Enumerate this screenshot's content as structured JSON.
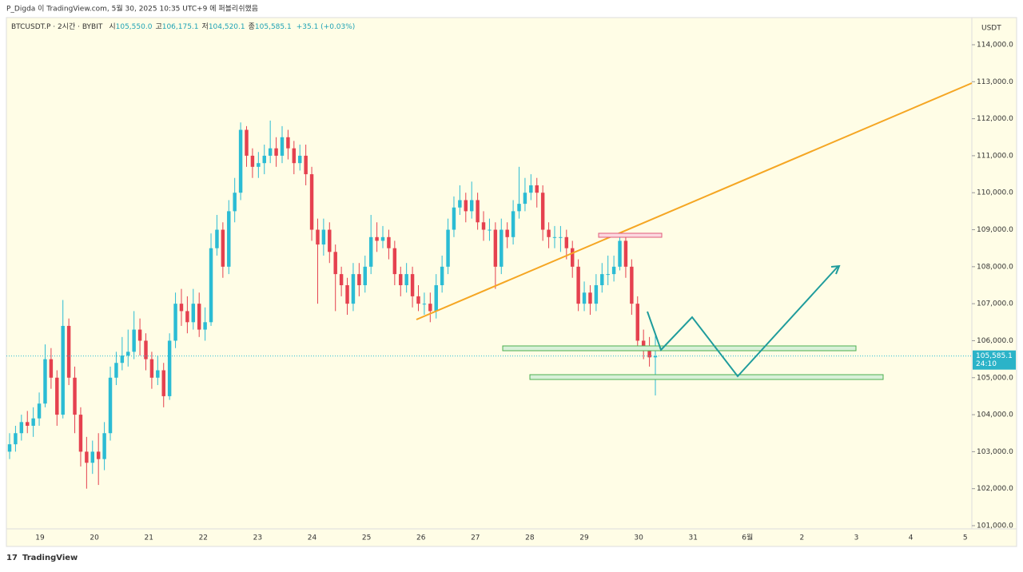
{
  "chart_data": {
    "type": "candlestick",
    "header": "P_Digda 이 TradingView.com, 5월 30, 2025 10:35 UTC+9 에 퍼블리쉬했음",
    "symbol": "BTCUSDT.P · 2시간 · BYBIT",
    "ohlc_legend": [
      {
        "label": "시",
        "value": "105,550.0"
      },
      {
        "label": "고",
        "value": "106,175.1"
      },
      {
        "label": "저",
        "value": "104,520.1"
      },
      {
        "label": "종",
        "value": "105,585.1"
      }
    ],
    "change": "+35.1 (+0.03%)",
    "currency": "USDT",
    "last_price": 105585.1,
    "last_price_label": "105,585.1",
    "countdown": "24:10",
    "brand": "TradingView",
    "up_color": "#2bbcd4",
    "down_color": "#e5414f",
    "xticks": [
      "19",
      "20",
      "21",
      "22",
      "23",
      "24",
      "25",
      "26",
      "27",
      "28",
      "29",
      "30",
      "31",
      "6월",
      "2",
      "3",
      "4",
      "5"
    ],
    "ylim": [
      101000,
      114000
    ],
    "yticks": [
      {
        "value": 101000,
        "label": "101,000.0"
      },
      {
        "value": 102000,
        "label": "102,000.0"
      },
      {
        "value": 103000,
        "label": "103,000.0"
      },
      {
        "value": 104000,
        "label": "104,000.0"
      },
      {
        "value": 105000,
        "label": "105,000.0"
      },
      {
        "value": 106000,
        "label": "106,000.0"
      },
      {
        "value": 107000,
        "label": "107,000.0"
      },
      {
        "value": 108000,
        "label": "108,000.0"
      },
      {
        "value": 109000,
        "label": "109,000.0"
      },
      {
        "value": 110000,
        "label": "110,000.0"
      },
      {
        "value": 111000,
        "label": "111,000.0"
      },
      {
        "value": 112000,
        "label": "112,000.0"
      },
      {
        "value": 113000,
        "label": "113,000.0"
      },
      {
        "value": 114000,
        "label": "114,000.0"
      }
    ],
    "open": [
      103000,
      103200,
      103500,
      103800,
      103700,
      103900,
      104300,
      105500,
      105000,
      104000,
      106400,
      105000,
      104000,
      103000,
      102700,
      103000,
      102800,
      103500,
      105000,
      105400,
      105600,
      105700,
      106300,
      106000,
      105500,
      105000,
      105200,
      104500,
      106000,
      107000,
      106800,
      106500,
      107000,
      106300,
      106500,
      108500,
      109000,
      108000,
      109500,
      110000,
      111700,
      111000,
      110700,
      110800,
      111000,
      111200,
      111000,
      111500,
      111200,
      110800,
      111000,
      110500,
      109000,
      108600,
      109000,
      108400,
      107800,
      107500,
      107000,
      107800,
      107500,
      108000,
      108800,
      108700,
      108800,
      108500,
      107800,
      107500,
      107800,
      107200,
      107000,
      107000,
      106800,
      107500,
      108000,
      109000,
      109600,
      109800,
      109500,
      109800,
      109200,
      109000,
      109000,
      108000,
      109000,
      108800,
      109500,
      109700,
      110000,
      110200,
      110000,
      109000,
      108800,
      108800,
      108800,
      108500,
      108000,
      107000,
      107300,
      107000,
      107500,
      107800,
      107800,
      108000,
      108700,
      108000,
      107000,
      106000,
      105800,
      105550
    ],
    "high": [
      103500,
      103700,
      104000,
      104100,
      104200,
      104600,
      105900,
      105800,
      105200,
      107100,
      106600,
      105300,
      104200,
      103400,
      103300,
      103500,
      103800,
      105300,
      105700,
      106100,
      106300,
      106800,
      106600,
      106200,
      105700,
      105600,
      105400,
      106200,
      107300,
      107400,
      107200,
      107400,
      107300,
      106900,
      108900,
      109400,
      109200,
      109800,
      110400,
      111900,
      111800,
      111200,
      111100,
      111300,
      111950,
      111500,
      111800,
      111700,
      111400,
      111300,
      111300,
      110700,
      109300,
      109300,
      109200,
      108600,
      108000,
      107700,
      108100,
      108100,
      108300,
      109400,
      109200,
      109100,
      109000,
      108700,
      108000,
      108100,
      108000,
      107500,
      107300,
      107300,
      107800,
      108300,
      109300,
      109900,
      110200,
      110000,
      110300,
      110000,
      109500,
      109300,
      109200,
      109300,
      109200,
      109800,
      110700,
      110400,
      110500,
      110400,
      110200,
      109200,
      109100,
      109100,
      109000,
      108700,
      108200,
      107600,
      107500,
      107800,
      108100,
      108300,
      108300,
      108900,
      108800,
      108200,
      107200,
      106300,
      106100,
      106175.1
    ],
    "low": [
      102800,
      103000,
      103300,
      103500,
      103400,
      103700,
      104200,
      104700,
      103700,
      103900,
      104800,
      103500,
      102600,
      102000,
      102400,
      102100,
      102500,
      103300,
      104800,
      105200,
      105300,
      105500,
      105600,
      105200,
      104700,
      104800,
      104200,
      104400,
      105800,
      106400,
      106200,
      106300,
      106100,
      106000,
      106400,
      108300,
      107700,
      107800,
      109200,
      109800,
      110700,
      110400,
      110400,
      110500,
      110800,
      110700,
      110800,
      110900,
      110500,
      110600,
      110200,
      108700,
      107000,
      108300,
      108100,
      106800,
      107200,
      106700,
      106800,
      107200,
      107300,
      107800,
      108400,
      108500,
      108200,
      107500,
      107200,
      107300,
      106900,
      106800,
      106700,
      106500,
      106600,
      107300,
      107800,
      108800,
      109400,
      109200,
      109300,
      109000,
      108700,
      108700,
      107400,
      107800,
      108500,
      108600,
      109300,
      109500,
      109800,
      109600,
      108700,
      108500,
      108500,
      108400,
      108200,
      107700,
      106800,
      106800,
      106700,
      106800,
      107300,
      107500,
      107600,
      107900,
      107700,
      106700,
      105800,
      105500,
      105300,
      104520.1
    ],
    "close": [
      103200,
      103500,
      103800,
      103700,
      103900,
      104300,
      105500,
      105000,
      104000,
      106400,
      105000,
      104000,
      103000,
      102700,
      103000,
      102800,
      103500,
      105000,
      105400,
      105600,
      105700,
      106300,
      106000,
      105500,
      105000,
      105200,
      104500,
      106000,
      107000,
      106800,
      106500,
      107000,
      106300,
      106500,
      108500,
      109000,
      108000,
      109500,
      110000,
      111700,
      111000,
      110700,
      110800,
      111000,
      111200,
      111000,
      111500,
      111200,
      110800,
      111000,
      110500,
      109000,
      108600,
      109000,
      108400,
      107800,
      107500,
      107000,
      107800,
      107500,
      108000,
      108800,
      108700,
      108800,
      108500,
      107800,
      107500,
      107800,
      107200,
      107000,
      107000,
      106800,
      107500,
      108000,
      109000,
      109600,
      109800,
      109500,
      109800,
      109200,
      109000,
      109000,
      108000,
      109000,
      108800,
      109500,
      109700,
      110000,
      110200,
      110000,
      109000,
      108800,
      108800,
      108800,
      108500,
      108000,
      107000,
      107300,
      107000,
      107500,
      107800,
      107800,
      108000,
      108700,
      108000,
      107000,
      106000,
      105800,
      105550,
      105585.1
    ]
  }
}
